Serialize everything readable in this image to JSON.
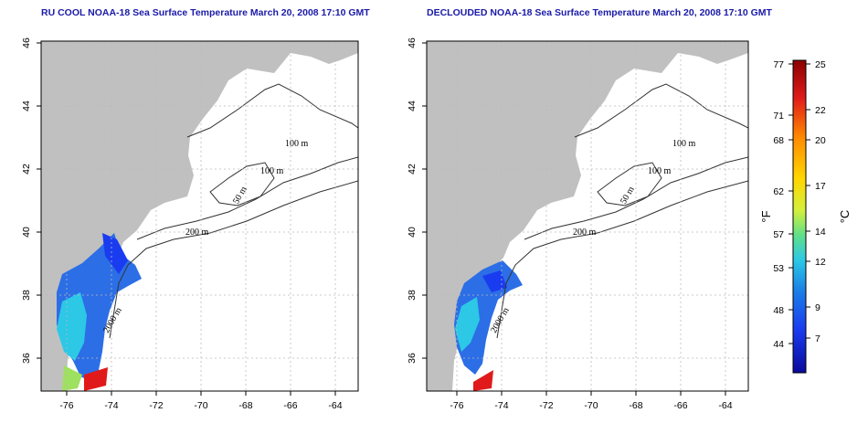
{
  "panels": [
    {
      "title": "RU COOL NOAA-18 Sea Surface Temperature March 20, 2008 17:10 GMT"
    },
    {
      "title": "DECLOUDED NOAA-18 Sea Surface Temperature March 20, 2008 17:10 GMT"
    }
  ],
  "map": {
    "x_ticks": [
      "-76",
      "-74",
      "-72",
      "-70",
      "-68",
      "-66",
      "-64"
    ],
    "y_ticks": [
      "46",
      "44",
      "42",
      "40",
      "38",
      "36"
    ],
    "contour_labels": [
      "100 m",
      "100 m",
      "50 m",
      "200 m",
      "2000 m"
    ],
    "land_color": "#c0c0c0",
    "grid": true
  },
  "colorbar": {
    "f_label": "°F",
    "c_label": "°C",
    "f_ticks": [
      "77",
      "71",
      "68",
      "62",
      "57",
      "53",
      "48",
      "44"
    ],
    "c_ticks": [
      "25",
      "22",
      "20",
      "17",
      "14",
      "12",
      "9",
      "7"
    ],
    "colors": [
      "#8b0000",
      "#e01a1a",
      "#ff8c00",
      "#ffd700",
      "#d4f03c",
      "#5fe08a",
      "#2cc8e6",
      "#1a7ee6",
      "#1a3cf0",
      "#0a0a9a"
    ]
  }
}
